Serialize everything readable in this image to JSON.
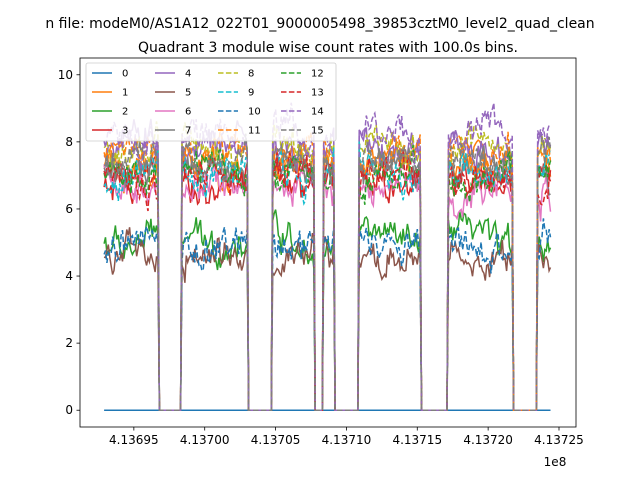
{
  "chart_data": {
    "type": "line",
    "suptitle": "n file: modeM0/AS1A12_022T01_9000005498_39853cztM0_level2_quad_clean",
    "title": "Quadrant 3 module wise count rates with 100.0s bins.",
    "xlabel": "",
    "ylabel": "",
    "x_offset_label": "1e8",
    "xlim": [
      4.136912,
      4.137262
    ],
    "ylim": [
      -0.5,
      10.5
    ],
    "xticks": [
      4.13695,
      4.137,
      4.13705,
      4.1371,
      4.13715,
      4.1372,
      4.13725
    ],
    "xtick_labels": [
      "4.13695",
      "4.13700",
      "4.13705",
      "4.13710",
      "4.13715",
      "4.13720",
      "4.13725"
    ],
    "yticks": [
      0,
      2,
      4,
      6,
      8,
      10
    ],
    "ytick_labels": [
      "0",
      "2",
      "4",
      "6",
      "8",
      "10"
    ],
    "x_start": 4.136929,
    "x_end": 4.137244,
    "bin_width_1e8": 1e-06,
    "gaps_1e8": [
      [
        4.136968,
        4.136984
      ],
      [
        4.137031,
        4.137048
      ],
      [
        4.137078,
        4.137084
      ],
      [
        4.137092,
        4.137109
      ],
      [
        4.137153,
        4.137172
      ],
      [
        4.137218,
        4.137235
      ]
    ],
    "legend_position": "upper-left",
    "legend_columns": 4,
    "series": [
      {
        "name": "0",
        "color": "#1f77b4",
        "dash": "solid",
        "level": 0,
        "note": "flat at zero"
      },
      {
        "name": "1",
        "color": "#ff7f0e",
        "dash": "solid",
        "level": 7.3
      },
      {
        "name": "2",
        "color": "#2ca02c",
        "dash": "solid",
        "level": 5.1
      },
      {
        "name": "3",
        "color": "#d62728",
        "dash": "solid",
        "level": 6.8
      },
      {
        "name": "4",
        "color": "#9467bd",
        "dash": "solid",
        "level": 7.9
      },
      {
        "name": "5",
        "color": "#8c564b",
        "dash": "solid",
        "level": 4.5
      },
      {
        "name": "6",
        "color": "#e377c2",
        "dash": "solid",
        "level": 6.6
      },
      {
        "name": "7",
        "color": "#7f7f7f",
        "dash": "solid",
        "level": 7.2
      },
      {
        "name": "8",
        "color": "#bcbd22",
        "dash": "dashed",
        "level": 7.8
      },
      {
        "name": "9",
        "color": "#17becf",
        "dash": "dashed",
        "level": 7.1
      },
      {
        "name": "10",
        "color": "#1f77b4",
        "dash": "dashed",
        "level": 4.9
      },
      {
        "name": "11",
        "color": "#ff7f0e",
        "dash": "dashed",
        "level": 7.6
      },
      {
        "name": "12",
        "color": "#2ca02c",
        "dash": "dashed",
        "level": 7.0
      },
      {
        "name": "13",
        "color": "#d62728",
        "dash": "dashed",
        "level": 6.9
      },
      {
        "name": "14",
        "color": "#9467bd",
        "dash": "dashed",
        "level": 8.2
      },
      {
        "name": "15",
        "color": "#7f7f7f",
        "dash": "dashed",
        "level": 7.5
      }
    ]
  }
}
